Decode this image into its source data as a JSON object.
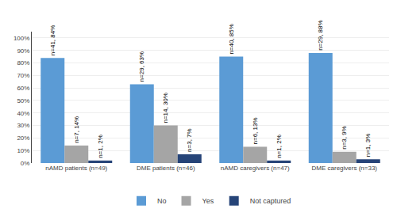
{
  "chart_data": {
    "type": "bar",
    "categories": [
      "nAMD patients (n=49)",
      "DME patients (n=46)",
      "nAMD caregivers (n=47)",
      "DME caregivers (n=33)"
    ],
    "series": [
      {
        "name": "No",
        "color": "#5B9BD5",
        "values": [
          84,
          63,
          85,
          88
        ],
        "value_labels": [
          "n=41, 84%",
          "n=29, 63%",
          "n=40, 85%",
          "n=29, 88%"
        ]
      },
      {
        "name": "Yes",
        "color": "#A5A5A5",
        "values": [
          14,
          30,
          13,
          9
        ],
        "value_labels": [
          "n=7, 14%",
          "n=14, 30%",
          "n=6, 13%",
          "n=3, 9%"
        ]
      },
      {
        "name": "Not captured",
        "color": "#264478",
        "values": [
          2,
          7,
          2,
          3
        ],
        "value_labels": [
          "n=1, 2%",
          "n=3, 7%",
          "n=1, 2%",
          "n=1, 3%"
        ]
      }
    ],
    "ylim": [
      0,
      105
    ],
    "yticks": [
      {
        "value": 0,
        "label": "0%"
      },
      {
        "value": 10,
        "label": "10%"
      },
      {
        "value": 20,
        "label": "20%"
      },
      {
        "value": 30,
        "label": "30%"
      },
      {
        "value": 40,
        "label": "40%"
      },
      {
        "value": 50,
        "label": "50%"
      },
      {
        "value": 60,
        "label": "60%"
      },
      {
        "value": 70,
        "label": "70%"
      },
      {
        "value": 80,
        "label": "80%"
      },
      {
        "value": 90,
        "label": "90%"
      },
      {
        "value": 100,
        "label": "100%"
      }
    ],
    "grid": true,
    "legend": "bottom",
    "data_labels": true
  }
}
